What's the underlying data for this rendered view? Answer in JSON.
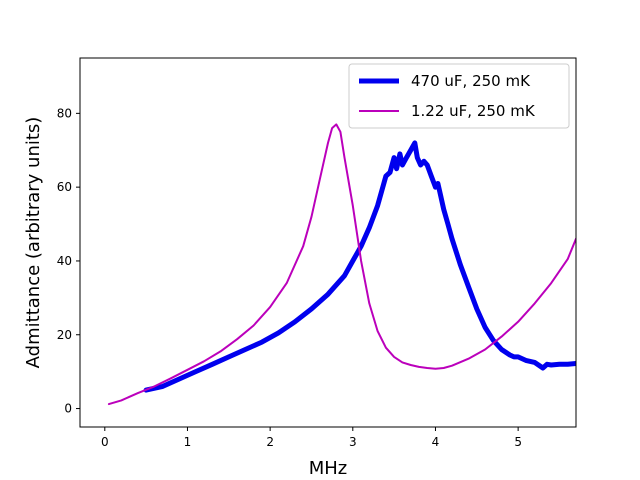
{
  "chart_data": {
    "type": "line",
    "title": "",
    "xlabel": "MHz",
    "ylabel": "Admittance (arbitrary units)",
    "xlim": [
      -0.3,
      5.7
    ],
    "ylim": [
      -5,
      95
    ],
    "xticks": [
      0,
      1,
      2,
      3,
      4,
      5
    ],
    "yticks": [
      0,
      20,
      40,
      60,
      80
    ],
    "legend_position": "top-right",
    "series": [
      {
        "name": "470 uF, 250 mK",
        "color": "#0000ee",
        "style": "thick",
        "x": [
          0.5,
          0.7,
          0.9,
          1.1,
          1.3,
          1.5,
          1.7,
          1.9,
          2.1,
          2.3,
          2.5,
          2.7,
          2.9,
          3.0,
          3.1,
          3.2,
          3.3,
          3.4,
          3.45,
          3.5,
          3.53,
          3.57,
          3.6,
          3.65,
          3.7,
          3.75,
          3.78,
          3.82,
          3.86,
          3.9,
          3.95,
          4.0,
          4.03,
          4.06,
          4.1,
          4.15,
          4.2,
          4.3,
          4.4,
          4.5,
          4.6,
          4.7,
          4.8,
          4.9,
          4.95,
          5.0,
          5.1,
          5.2,
          5.3,
          5.35,
          5.4,
          5.5,
          5.6,
          5.7
        ],
        "y": [
          5,
          6,
          8,
          10,
          12,
          14,
          16,
          18,
          20.5,
          23.5,
          27,
          31,
          36,
          40,
          44,
          49,
          55,
          63,
          64,
          68,
          65,
          69,
          66,
          68,
          70,
          72,
          68,
          66,
          67,
          66,
          63,
          60,
          61,
          58,
          54,
          50,
          46,
          39,
          33,
          27,
          22,
          18.5,
          16,
          14.5,
          14,
          14,
          13,
          12.5,
          11,
          12,
          11.8,
          12,
          12,
          12.2
        ]
      },
      {
        "name": "1.22 uF, 250 mK",
        "color": "#bb00bb",
        "style": "thin",
        "x": [
          0.05,
          0.2,
          0.4,
          0.6,
          0.8,
          1.0,
          1.2,
          1.4,
          1.6,
          1.8,
          2.0,
          2.2,
          2.4,
          2.5,
          2.6,
          2.7,
          2.75,
          2.8,
          2.85,
          2.9,
          3.0,
          3.1,
          3.2,
          3.3,
          3.4,
          3.5,
          3.6,
          3.7,
          3.8,
          3.9,
          4.0,
          4.1,
          4.2,
          4.4,
          4.6,
          4.8,
          5.0,
          5.2,
          5.4,
          5.6,
          5.7
        ],
        "y": [
          1.2,
          2.2,
          4.2,
          6,
          8.2,
          10.5,
          12.8,
          15.5,
          18.8,
          22.5,
          27.5,
          34,
          44,
          52,
          62,
          72,
          76,
          77,
          75,
          68,
          55,
          40,
          28.5,
          21,
          16.5,
          14,
          12.5,
          11.8,
          11.3,
          11,
          10.8,
          11,
          11.6,
          13.5,
          16,
          19.5,
          23.5,
          28.5,
          34,
          40.5,
          46
        ]
      }
    ]
  }
}
